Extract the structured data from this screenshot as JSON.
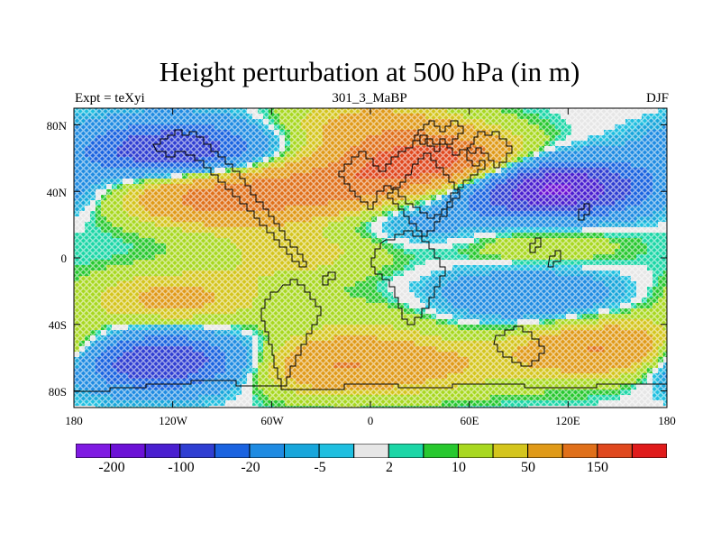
{
  "title": "Height perturbation at 500 hPa (in m)",
  "left_string": "Expt = teXyi",
  "center_string": "301_3_MaBP",
  "right_string": "DJF",
  "lat_labels": [
    "80N",
    "40N",
    "0",
    "40S",
    "80S"
  ],
  "lon_labels": [
    "180",
    "120W",
    "60W",
    "0",
    "60E",
    "120E",
    "180"
  ],
  "colorbar": {
    "colors": [
      "#7f1ae2",
      "#6c12d6",
      "#4a1fd0",
      "#2f3ed2",
      "#1a63e0",
      "#1f8be2",
      "#18a6db",
      "#1fbfe0",
      "#e6e6e6",
      "#1cd6a6",
      "#28c82f",
      "#a8d820",
      "#d4c51d",
      "#e09a18",
      "#e0701a",
      "#e0481e",
      "#e01b1b"
    ],
    "labels": [
      "-200",
      "-100",
      "-20",
      "-5",
      "2",
      "10",
      "50",
      "150"
    ]
  },
  "chart_data": {
    "type": "heatmap",
    "title": "Height perturbation at 500 hPa (in m)",
    "projection": "cylindrical equidistant",
    "xlim": [
      -180,
      180
    ],
    "ylim": [
      -90,
      90
    ],
    "x_ticks": [
      "180",
      "120W",
      "60W",
      "0",
      "60E",
      "120E",
      "180"
    ],
    "y_ticks": [
      "80N",
      "40N",
      "0",
      "40S",
      "80S"
    ],
    "levels": [
      -200,
      -100,
      -20,
      -5,
      2,
      10,
      50,
      150
    ],
    "features": [
      {
        "lon": -120,
        "lat": 65,
        "value": -150
      },
      {
        "lon": 110,
        "lat": 42,
        "value": -220
      },
      {
        "lon": -130,
        "lat": -62,
        "value": -160
      },
      {
        "lon": 95,
        "lat": -22,
        "value": -60
      },
      {
        "lon": 40,
        "lat": 58,
        "value": 180
      },
      {
        "lon": -95,
        "lat": 37,
        "value": 120
      },
      {
        "lon": -20,
        "lat": 42,
        "value": 110
      },
      {
        "lon": 0,
        "lat": 80,
        "value": 60
      },
      {
        "lon": 100,
        "lat": 8,
        "value": 30
      },
      {
        "lon": -120,
        "lat": -25,
        "value": 60
      },
      {
        "lon": -40,
        "lat": 5,
        "value": 35
      },
      {
        "lon": 145,
        "lat": -55,
        "value": 110
      },
      {
        "lon": -25,
        "lat": -65,
        "value": 90
      },
      {
        "lon": 40,
        "lat": -65,
        "value": 40
      },
      {
        "lon": -60,
        "lat": -5,
        "value": 8
      },
      {
        "lon": 30,
        "lat": 25,
        "value": -40
      },
      {
        "lon": 0,
        "lat": -40,
        "value": 20
      }
    ]
  }
}
